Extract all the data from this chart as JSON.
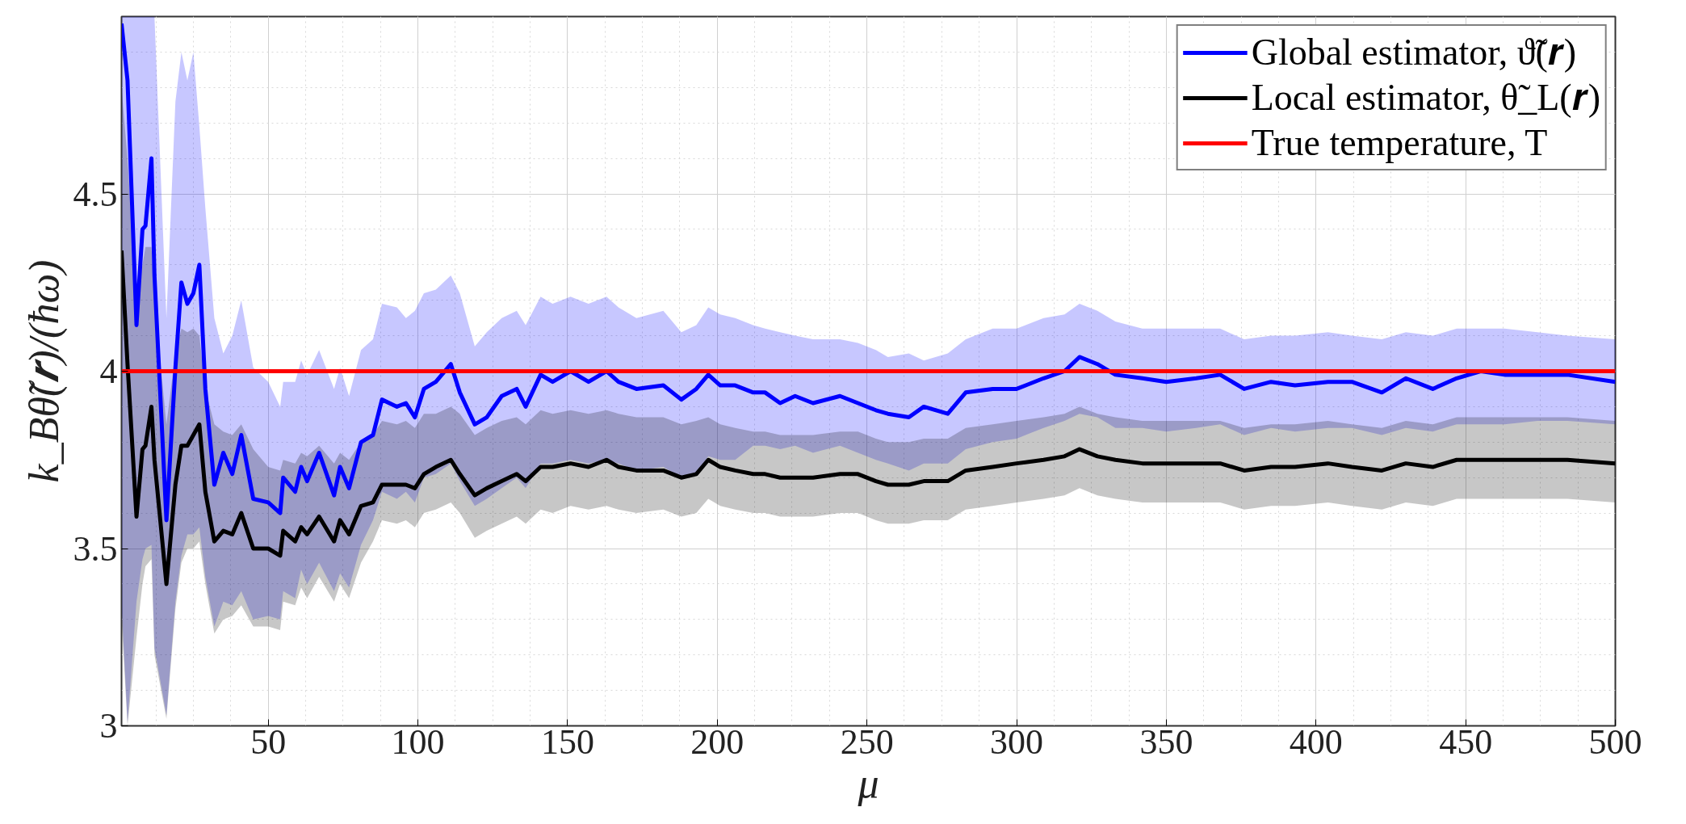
{
  "chart_data": {
    "type": "line",
    "xlabel": "μ",
    "ylabel": "k_Bθ̃(𝒓)/(ħω)",
    "x": [
      1,
      3,
      6,
      8,
      9,
      11,
      12,
      16,
      19,
      21,
      23,
      25,
      27,
      29,
      32,
      35,
      38,
      41,
      45,
      50,
      54,
      55,
      59,
      61,
      63,
      67,
      72,
      74,
      77,
      81,
      85,
      88,
      93,
      96,
      99,
      102,
      106,
      111,
      114,
      119,
      123,
      128,
      133,
      136,
      141,
      145,
      151,
      157,
      163,
      167,
      173,
      182,
      188,
      193,
      197,
      201,
      206,
      212,
      216,
      221,
      226,
      232,
      241,
      247,
      253,
      257,
      264,
      269,
      277,
      283,
      292,
      300,
      309,
      316,
      321,
      327,
      333,
      342,
      350,
      360,
      368,
      376,
      385,
      393,
      404,
      412,
      422,
      430,
      439,
      447,
      455,
      463,
      474,
      484,
      500
    ],
    "series": [
      {
        "name": "Global estimator, ϑ̃(𝒓)",
        "color": "#0000ff",
        "values": [
          4.98,
          4.82,
          4.13,
          4.4,
          4.41,
          4.6,
          4.27,
          3.58,
          4.01,
          4.25,
          4.19,
          4.22,
          4.3,
          3.95,
          3.68,
          3.77,
          3.71,
          3.82,
          3.64,
          3.63,
          3.6,
          3.7,
          3.66,
          3.73,
          3.69,
          3.77,
          3.65,
          3.73,
          3.67,
          3.8,
          3.82,
          3.92,
          3.9,
          3.91,
          3.87,
          3.95,
          3.97,
          4.02,
          3.94,
          3.85,
          3.87,
          3.93,
          3.95,
          3.9,
          3.99,
          3.97,
          4.0,
          3.97,
          4.0,
          3.97,
          3.95,
          3.96,
          3.92,
          3.95,
          3.99,
          3.96,
          3.96,
          3.94,
          3.94,
          3.91,
          3.93,
          3.91,
          3.93,
          3.91,
          3.89,
          3.88,
          3.87,
          3.9,
          3.88,
          3.94,
          3.95,
          3.95,
          3.98,
          4.0,
          4.04,
          4.02,
          3.99,
          3.98,
          3.97,
          3.98,
          3.99,
          3.95,
          3.97,
          3.96,
          3.97,
          3.97,
          3.94,
          3.98,
          3.95,
          3.98,
          4.0,
          3.99,
          3.99,
          3.99,
          3.97
        ],
        "upper": [
          5.0,
          5.0,
          5.0,
          5.0,
          5.0,
          5.0,
          5.0,
          4.15,
          4.76,
          4.9,
          4.82,
          4.9,
          4.69,
          4.46,
          4.15,
          4.05,
          4.1,
          4.2,
          4.01,
          3.97,
          3.9,
          3.97,
          3.97,
          4.03,
          3.99,
          4.06,
          3.95,
          4.01,
          3.93,
          4.06,
          4.09,
          4.19,
          4.18,
          4.15,
          4.17,
          4.22,
          4.23,
          4.27,
          4.22,
          4.07,
          4.11,
          4.15,
          4.17,
          4.13,
          4.21,
          4.19,
          4.21,
          4.19,
          4.21,
          4.18,
          4.15,
          4.17,
          4.11,
          4.13,
          4.18,
          4.16,
          4.15,
          4.13,
          4.12,
          4.11,
          4.1,
          4.09,
          4.09,
          4.08,
          4.06,
          4.04,
          4.05,
          4.03,
          4.05,
          4.09,
          4.12,
          4.12,
          4.15,
          4.16,
          4.19,
          4.17,
          4.14,
          4.12,
          4.12,
          4.12,
          4.12,
          4.09,
          4.1,
          4.1,
          4.11,
          4.1,
          4.09,
          4.11,
          4.1,
          4.12,
          4.12,
          4.12,
          4.11,
          4.1,
          4.09
        ],
        "lower": [
          3.34,
          3.01,
          3.35,
          3.47,
          3.5,
          3.51,
          3.22,
          3.03,
          3.35,
          3.48,
          3.54,
          3.54,
          3.56,
          3.42,
          3.28,
          3.35,
          3.34,
          3.38,
          3.3,
          3.31,
          3.3,
          3.38,
          3.36,
          3.44,
          3.4,
          3.46,
          3.38,
          3.43,
          3.39,
          3.51,
          3.58,
          3.66,
          3.64,
          3.66,
          3.63,
          3.7,
          3.71,
          3.74,
          3.69,
          3.62,
          3.64,
          3.67,
          3.7,
          3.67,
          3.74,
          3.74,
          3.75,
          3.74,
          3.75,
          3.74,
          3.72,
          3.73,
          3.7,
          3.71,
          3.76,
          3.75,
          3.75,
          3.79,
          3.79,
          3.78,
          3.79,
          3.77,
          3.79,
          3.77,
          3.75,
          3.74,
          3.72,
          3.74,
          3.74,
          3.78,
          3.8,
          3.81,
          3.84,
          3.86,
          3.88,
          3.87,
          3.84,
          3.84,
          3.83,
          3.84,
          3.85,
          3.82,
          3.84,
          3.83,
          3.84,
          3.84,
          3.82,
          3.84,
          3.83,
          3.85,
          3.85,
          3.85,
          3.86,
          3.86,
          3.85
        ]
      },
      {
        "name": "Local estimator, θ̃_L(𝒓)",
        "color": "#000000",
        "values": [
          4.34,
          4.02,
          3.59,
          3.78,
          3.79,
          3.9,
          3.75,
          3.4,
          3.68,
          3.79,
          3.79,
          3.82,
          3.85,
          3.66,
          3.52,
          3.55,
          3.54,
          3.6,
          3.5,
          3.5,
          3.48,
          3.55,
          3.52,
          3.56,
          3.54,
          3.59,
          3.52,
          3.58,
          3.54,
          3.62,
          3.63,
          3.68,
          3.68,
          3.68,
          3.67,
          3.71,
          3.73,
          3.75,
          3.71,
          3.65,
          3.67,
          3.69,
          3.71,
          3.69,
          3.73,
          3.73,
          3.74,
          3.73,
          3.75,
          3.73,
          3.72,
          3.72,
          3.7,
          3.71,
          3.75,
          3.73,
          3.72,
          3.71,
          3.71,
          3.7,
          3.7,
          3.7,
          3.71,
          3.71,
          3.69,
          3.68,
          3.68,
          3.69,
          3.69,
          3.72,
          3.73,
          3.74,
          3.75,
          3.76,
          3.78,
          3.76,
          3.75,
          3.74,
          3.74,
          3.74,
          3.74,
          3.72,
          3.73,
          3.73,
          3.74,
          3.73,
          3.72,
          3.74,
          3.73,
          3.75,
          3.75,
          3.75,
          3.75,
          3.75,
          3.74
        ],
        "upper": [
          4.8,
          4.6,
          4.2,
          4.3,
          4.35,
          4.35,
          4.2,
          3.85,
          4.05,
          4.12,
          4.11,
          4.12,
          4.1,
          3.95,
          3.85,
          3.83,
          3.82,
          3.85,
          3.78,
          3.73,
          3.72,
          3.75,
          3.74,
          3.77,
          3.76,
          3.79,
          3.74,
          3.77,
          3.75,
          3.8,
          3.82,
          3.86,
          3.85,
          3.86,
          3.84,
          3.88,
          3.88,
          3.9,
          3.88,
          3.82,
          3.84,
          3.86,
          3.87,
          3.85,
          3.89,
          3.88,
          3.89,
          3.88,
          3.89,
          3.88,
          3.87,
          3.87,
          3.85,
          3.86,
          3.87,
          3.85,
          3.84,
          3.83,
          3.83,
          3.82,
          3.82,
          3.82,
          3.83,
          3.83,
          3.81,
          3.8,
          3.8,
          3.81,
          3.81,
          3.84,
          3.85,
          3.86,
          3.87,
          3.88,
          3.9,
          3.88,
          3.87,
          3.86,
          3.86,
          3.86,
          3.86,
          3.84,
          3.85,
          3.85,
          3.86,
          3.85,
          3.84,
          3.86,
          3.85,
          3.87,
          3.87,
          3.87,
          3.87,
          3.87,
          3.86
        ],
        "lower": [
          3.3,
          3.0,
          3.25,
          3.4,
          3.45,
          3.47,
          3.2,
          3.02,
          3.33,
          3.46,
          3.5,
          3.5,
          3.52,
          3.4,
          3.26,
          3.3,
          3.31,
          3.34,
          3.28,
          3.28,
          3.27,
          3.35,
          3.34,
          3.39,
          3.36,
          3.42,
          3.35,
          3.4,
          3.36,
          3.46,
          3.52,
          3.58,
          3.57,
          3.58,
          3.56,
          3.6,
          3.61,
          3.63,
          3.6,
          3.53,
          3.55,
          3.57,
          3.59,
          3.57,
          3.61,
          3.6,
          3.62,
          3.61,
          3.62,
          3.61,
          3.6,
          3.61,
          3.59,
          3.6,
          3.64,
          3.62,
          3.61,
          3.6,
          3.6,
          3.59,
          3.59,
          3.59,
          3.6,
          3.6,
          3.58,
          3.57,
          3.57,
          3.58,
          3.58,
          3.61,
          3.62,
          3.63,
          3.64,
          3.65,
          3.67,
          3.65,
          3.64,
          3.63,
          3.63,
          3.63,
          3.63,
          3.61,
          3.62,
          3.62,
          3.63,
          3.62,
          3.61,
          3.63,
          3.62,
          3.64,
          3.64,
          3.64,
          3.64,
          3.64,
          3.63
        ]
      },
      {
        "name": "True temperature, T",
        "color": "#ff0000",
        "x": [
          1,
          500
        ],
        "values": [
          4,
          4
        ]
      }
    ],
    "xlim": [
      1,
      500
    ],
    "ylim": [
      3,
      5
    ],
    "xticks": [
      50,
      100,
      150,
      200,
      250,
      300,
      350,
      400,
      450,
      500
    ],
    "yticks": [
      3,
      3.5,
      4,
      4.5
    ],
    "grid": true,
    "legend": "top right",
    "line_style": "solid",
    "marker": "none"
  }
}
